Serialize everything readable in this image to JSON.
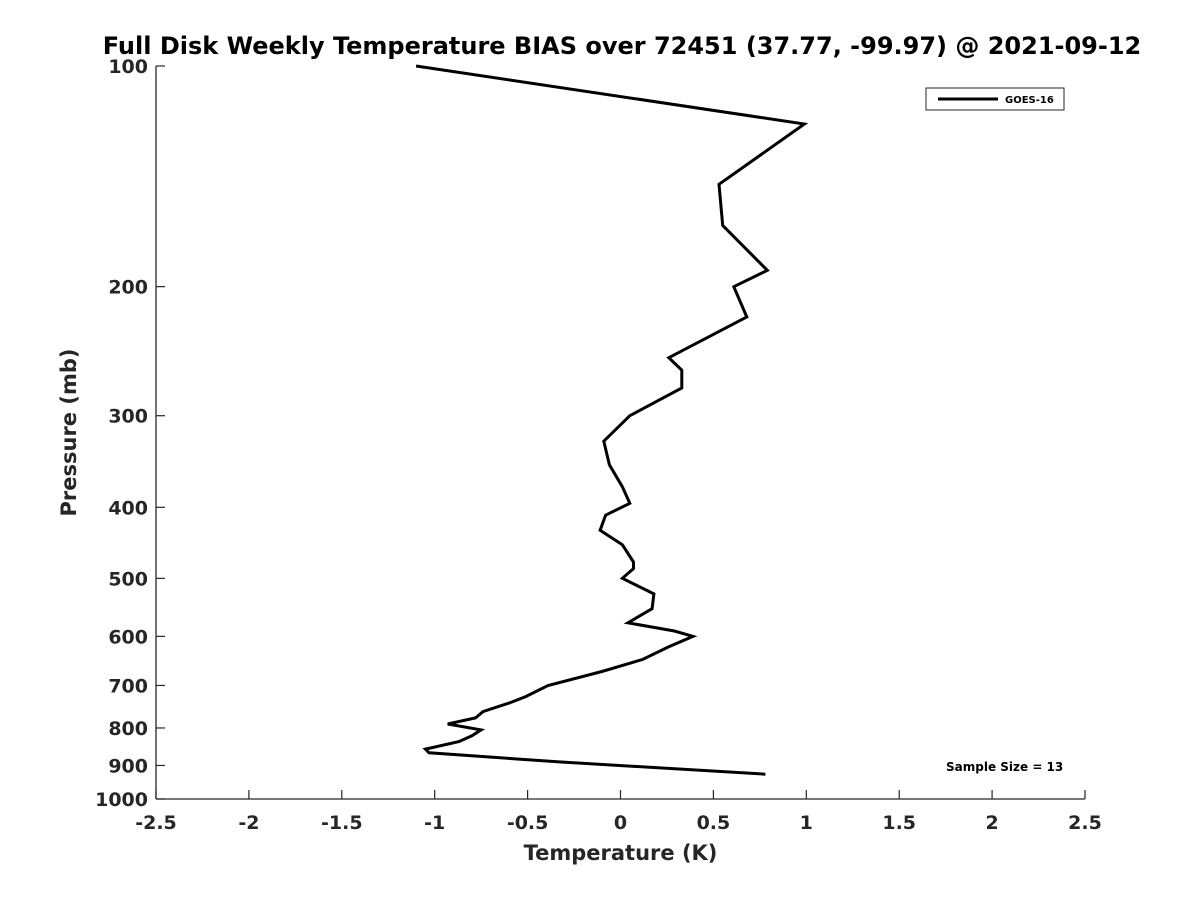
{
  "chart_data": {
    "type": "line",
    "title": "Full Disk Weekly Temperature BIAS over 72451 (37.77, -99.97) @ 2021-09-12",
    "xlabel": "Temperature (K)",
    "ylabel": "Pressure (mb)",
    "xlim": [
      -2.5,
      2.5
    ],
    "ylim": [
      100,
      1000
    ],
    "y_scale": "log",
    "y_reversed": true,
    "x_ticks": [
      "-2.5",
      "-2",
      "-1.5",
      "-1",
      "-0.5",
      "0",
      "0.5",
      "1",
      "1.5",
      "2",
      "2.5"
    ],
    "y_ticks": [
      "100",
      "200",
      "300",
      "400",
      "500",
      "600",
      "700",
      "800",
      "900",
      "1000"
    ],
    "grid": false,
    "legend_position": "top-right",
    "line_color": "#000000",
    "annotation": "Sample Size = 13",
    "series": [
      {
        "name": "GOES-16",
        "points": [
          {
            "x": -1.1,
            "p": 100
          },
          {
            "x": 0.99,
            "p": 120
          },
          {
            "x": 0.53,
            "p": 145
          },
          {
            "x": 0.55,
            "p": 165
          },
          {
            "x": 0.79,
            "p": 190
          },
          {
            "x": 0.61,
            "p": 200
          },
          {
            "x": 0.68,
            "p": 220
          },
          {
            "x": 0.26,
            "p": 250
          },
          {
            "x": 0.33,
            "p": 260
          },
          {
            "x": 0.33,
            "p": 275
          },
          {
            "x": 0.05,
            "p": 300
          },
          {
            "x": -0.09,
            "p": 325
          },
          {
            "x": -0.06,
            "p": 350
          },
          {
            "x": 0.01,
            "p": 375
          },
          {
            "x": 0.05,
            "p": 395
          },
          {
            "x": -0.08,
            "p": 410
          },
          {
            "x": -0.11,
            "p": 430
          },
          {
            "x": 0.01,
            "p": 450
          },
          {
            "x": 0.07,
            "p": 475
          },
          {
            "x": 0.07,
            "p": 485
          },
          {
            "x": 0.01,
            "p": 500
          },
          {
            "x": 0.18,
            "p": 525
          },
          {
            "x": 0.17,
            "p": 550
          },
          {
            "x": 0.04,
            "p": 575
          },
          {
            "x": 0.29,
            "p": 590
          },
          {
            "x": 0.39,
            "p": 600
          },
          {
            "x": 0.26,
            "p": 620
          },
          {
            "x": 0.12,
            "p": 645
          },
          {
            "x": -0.1,
            "p": 670
          },
          {
            "x": -0.39,
            "p": 700
          },
          {
            "x": -0.51,
            "p": 725
          },
          {
            "x": -0.6,
            "p": 740
          },
          {
            "x": -0.74,
            "p": 760
          },
          {
            "x": -0.78,
            "p": 775
          },
          {
            "x": -0.93,
            "p": 790
          },
          {
            "x": -0.75,
            "p": 805
          },
          {
            "x": -0.8,
            "p": 820
          },
          {
            "x": -0.87,
            "p": 835
          },
          {
            "x": -1.05,
            "p": 855
          },
          {
            "x": -1.03,
            "p": 865
          },
          {
            "x": -0.33,
            "p": 890
          },
          {
            "x": 0.78,
            "p": 925
          }
        ]
      }
    ]
  }
}
